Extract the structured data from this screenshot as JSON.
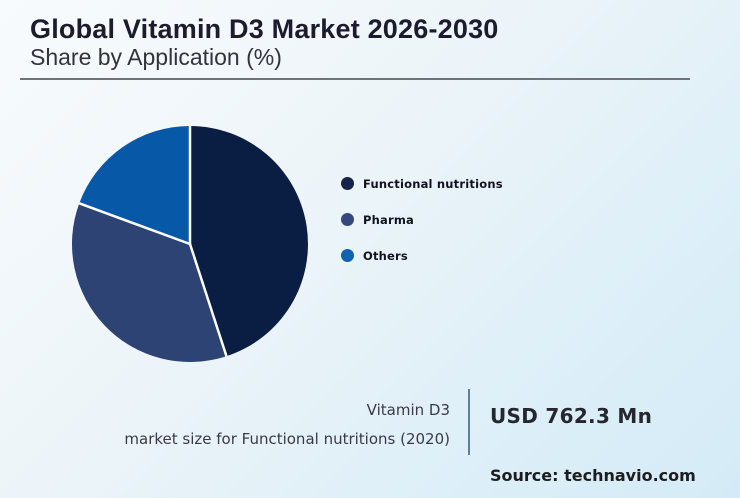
{
  "header": {
    "title": "Global Vitamin D3 Market 2026-2030",
    "subtitle": "Share by Application (%)"
  },
  "chart_data": {
    "type": "pie",
    "title": "Global Vitamin D3 Market 2026-2030",
    "subtitle": "Share by Application (%)",
    "categories": [
      "Functional nutritions",
      "Pharma",
      "Others"
    ],
    "values": [
      45,
      35.6,
      19.4
    ],
    "colors": [
      "#0a1e44",
      "#2c4374",
      "#0858a8"
    ],
    "start_angle_deg": 0,
    "direction": "clockwise",
    "slice_border_color": "#ffffff",
    "legend_position": "right"
  },
  "legend": {
    "items": [
      {
        "label": "Functional nutritions",
        "color": "#13234c"
      },
      {
        "label": "Pharma",
        "color": "#36497c"
      },
      {
        "label": "Others",
        "color": "#0f62b2"
      }
    ]
  },
  "footer": {
    "note_line1": "Vitamin D3",
    "note_line2": "market size for Functional nutritions (2020)",
    "market_size_value": "USD 762.3 Mn",
    "source": "Source: technavio.com"
  }
}
